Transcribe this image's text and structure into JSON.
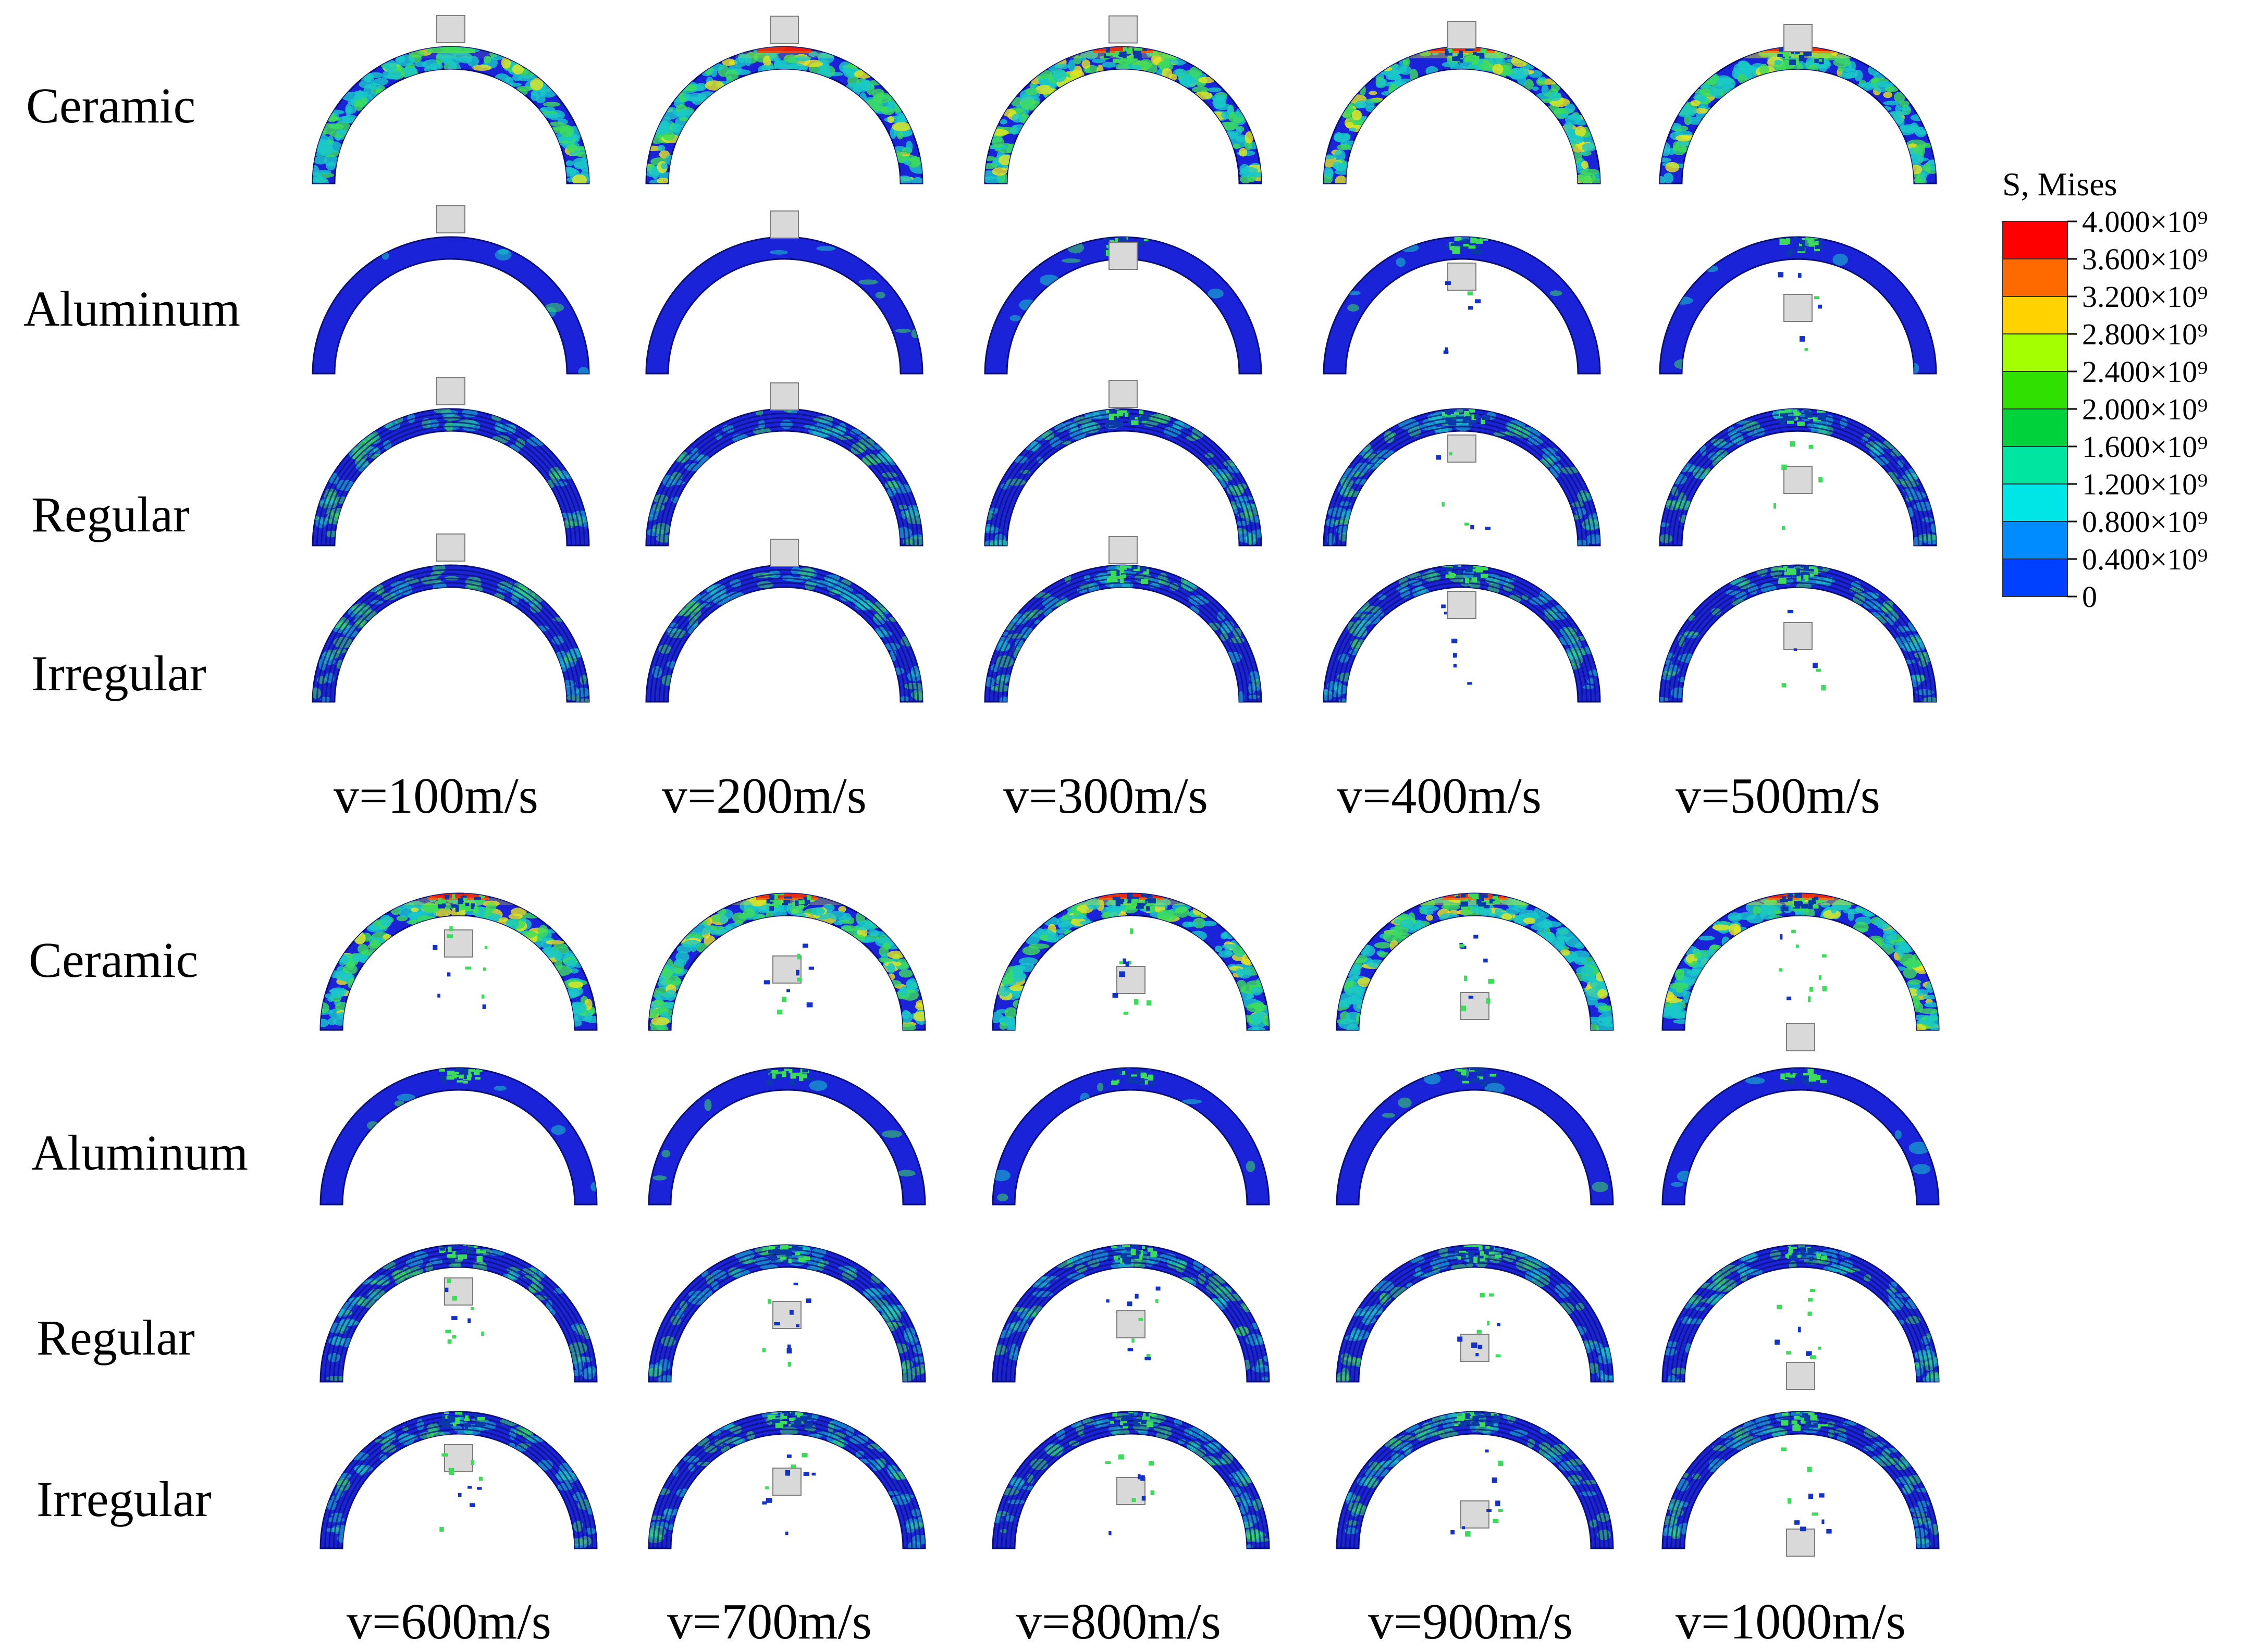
{
  "panels": [
    {
      "rows": [
        "Ceramic",
        "Aluminum",
        "Regular",
        "Irregular"
      ],
      "velocities": [
        "v=100m/s",
        "v=200m/s",
        "v=300m/s",
        "v=400m/s",
        "v=500m/s"
      ]
    },
    {
      "rows": [
        "Ceramic",
        "Aluminum",
        "Regular",
        "Irregular"
      ],
      "velocities": [
        "v=600m/s",
        "v=700m/s",
        "v=800m/s",
        "v=900m/s",
        "v=1000m/s"
      ]
    }
  ],
  "legend": {
    "title": "S, Mises",
    "ticks": [
      "4.000×10⁹",
      "3.600×10⁹",
      "3.200×10⁹",
      "2.800×10⁹",
      "2.400×10⁹",
      "2.000×10⁹",
      "1.600×10⁹",
      "1.200×10⁹",
      "0.800×10⁹",
      "0.400×10⁹",
      "0"
    ],
    "colors": [
      "#ff0000",
      "#ff6a00",
      "#ffd200",
      "#a4ff00",
      "#2fe000",
      "#00d23c",
      "#00e6a0",
      "#00e6e6",
      "#008cff",
      "#0040ff"
    ]
  },
  "colors": {
    "base_blue": "#1a23d8",
    "outline": "#0a0f7a",
    "stress_green": "#3cdc5a",
    "stress_cyan": "#19c8c8",
    "stress_yellow": "#e6e61e",
    "stress_red": "#ff1e00",
    "projectile": "#d9d9d9",
    "projectile_edge": "#7d7d7d"
  }
}
